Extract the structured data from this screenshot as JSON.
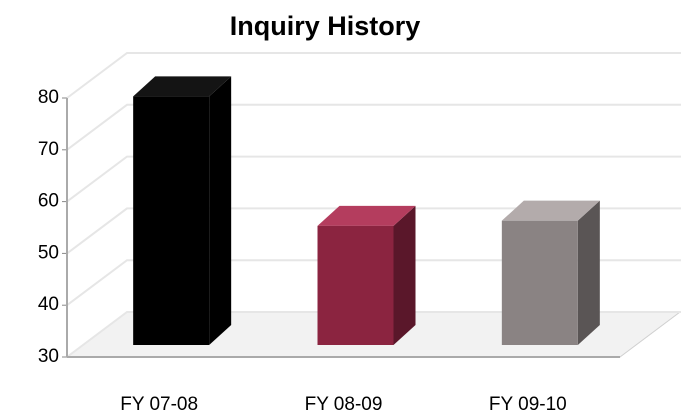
{
  "chart_data": {
    "type": "bar3d",
    "title": "Inquiry History",
    "categories": [
      "FY 07-08",
      "FY 08-09",
      "FY 09-10"
    ],
    "values": [
      78,
      53,
      54
    ],
    "colors": [
      "#000000",
      "#8b2440",
      "#8a8383"
    ],
    "ylim": [
      30,
      80
    ],
    "yticks": [
      30,
      40,
      50,
      60,
      70,
      80
    ],
    "grid": true
  }
}
